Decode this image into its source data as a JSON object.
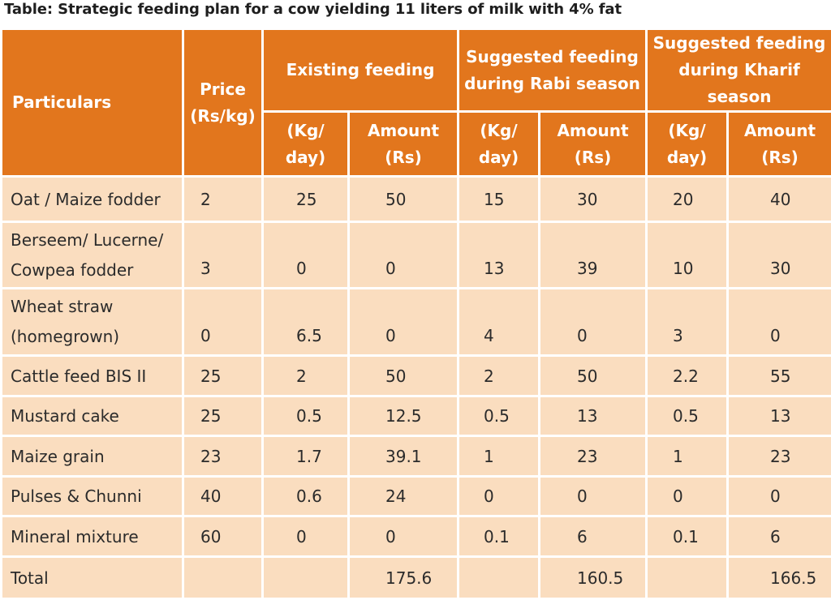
{
  "title": "Table: Strategic feeding plan for a cow yielding 11 liters of milk with 4% fat",
  "header": {
    "particulars": "Particulars",
    "price": "Price (Rs/kg)",
    "groups": [
      "Existing feeding",
      "Suggested feeding during Rabi season",
      "Suggested feeding during Kharif season"
    ],
    "sub": [
      "(Kg/ day)",
      "Amount (Rs)",
      "(Kg/ day)",
      "Amount (Rs)",
      "(Kg/ day)",
      "Amount (Rs)"
    ]
  },
  "colors": {
    "header_bg": "#E2761D",
    "body_bg": "#FADDBF"
  },
  "rows": [
    {
      "name": "Oat / Maize fodder",
      "v": [
        "2",
        "25",
        "50",
        "15",
        "30",
        "20",
        "40"
      ]
    },
    {
      "name": "Berseem/ Lucerne/ Cowpea fodder",
      "v": [
        "3",
        "0",
        "0",
        "13",
        "39",
        "10",
        "30"
      ]
    },
    {
      "name": "Wheat straw (homegrown)",
      "v": [
        "0",
        "6.5",
        "0",
        "4",
        "0",
        "3",
        "0"
      ]
    },
    {
      "name": "Cattle feed BIS II",
      "v": [
        "25",
        "2",
        "50",
        "2",
        "50",
        "2.2",
        "55"
      ]
    },
    {
      "name": "Mustard cake",
      "v": [
        "25",
        "0.5",
        "12.5",
        "0.5",
        "13",
        "0.5",
        "13"
      ]
    },
    {
      "name": "Maize grain",
      "v": [
        "23",
        "1.7",
        "39.1",
        "1",
        "23",
        "1",
        "23"
      ]
    },
    {
      "name": "Pulses & Chunni",
      "v": [
        "40",
        "0.6",
        "24",
        "0",
        "0",
        "0",
        "0"
      ]
    },
    {
      "name": "Mineral mixture",
      "v": [
        "60",
        "0",
        "0",
        "0.1",
        "6",
        "0.1",
        "6"
      ]
    },
    {
      "name": "Total",
      "v": [
        "",
        "",
        "175.6",
        "",
        "160.5",
        "",
        "166.5"
      ]
    }
  ]
}
